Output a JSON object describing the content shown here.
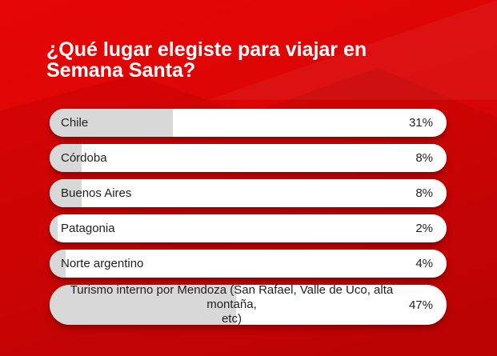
{
  "poll": {
    "question": "¿Qué lugar elegiste para viajar en Semana Santa?",
    "question_lines": [
      "¿Qué lugar elegiste para viajar en",
      "Semana Santa?"
    ],
    "options": [
      {
        "label": "Chile",
        "percent": 31,
        "percent_label": "31%"
      },
      {
        "label": "Córdoba",
        "percent": 8,
        "percent_label": "8%"
      },
      {
        "label": "Buenos Aires",
        "percent": 8,
        "percent_label": "8%"
      },
      {
        "label": "Patagonia",
        "percent": 2,
        "percent_label": "2%"
      },
      {
        "label": "Norte argentino",
        "percent": 4,
        "percent_label": "4%"
      },
      {
        "label": "Turismo interno por Mendoza (San Rafael, Valle de Uco, alta montaña, etc)",
        "label_lines": [
          "Turismo interno por Mendoza (San Rafael, Valle de Uco, alta montaña,",
          "etc)"
        ],
        "percent": 47,
        "percent_label": "47%"
      }
    ]
  },
  "colors": {
    "background_top": "#e60606",
    "background_bottom": "#c30404",
    "bar_background": "#ffffff",
    "bar_fill": "#d8d8d8",
    "text_dark": "#1f1f1f",
    "title_text": "#ffffff"
  },
  "chart_data": {
    "type": "bar",
    "orientation": "horizontal",
    "title": "¿Qué lugar elegiste para viajar en Semana Santa?",
    "categories": [
      "Chile",
      "Córdoba",
      "Buenos Aires",
      "Patagonia",
      "Norte argentino",
      "Turismo interno por Mendoza (San Rafael, Valle de Uco, alta montaña, etc)"
    ],
    "values": [
      31,
      8,
      8,
      2,
      4,
      47
    ],
    "unit": "%",
    "value_range": [
      0,
      100
    ],
    "grid": false,
    "legend": false,
    "data_labels": [
      "31%",
      "8%",
      "8%",
      "2%",
      "4%",
      "47%"
    ]
  }
}
